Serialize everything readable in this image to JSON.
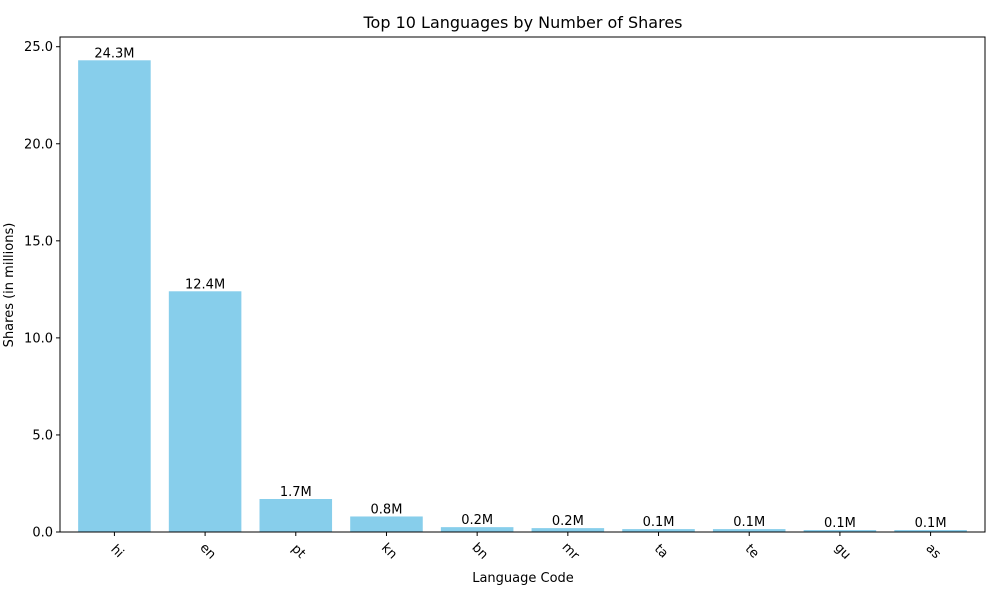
{
  "chart_data": {
    "type": "bar",
    "title": "Top 10 Languages by Number of Shares",
    "xlabel": "Language Code",
    "ylabel": "Shares (in millions)",
    "categories": [
      "hi",
      "en",
      "pt",
      "kn",
      "bn",
      "mr",
      "ta",
      "te",
      "gu",
      "as"
    ],
    "values": [
      24.3,
      12.4,
      1.7,
      0.8,
      0.25,
      0.2,
      0.15,
      0.15,
      0.1,
      0.1
    ],
    "data_labels": [
      "24.3M",
      "12.4M",
      "1.7M",
      "0.8M",
      "0.2M",
      "0.2M",
      "0.1M",
      "0.1M",
      "0.1M",
      "0.1M"
    ],
    "ylim": [
      0,
      25.5
    ],
    "yticks": [
      0,
      5,
      10,
      15,
      20,
      25
    ],
    "ytick_labels": [
      "0.0",
      "5.0",
      "10.0",
      "15.0",
      "20.0",
      "25.0"
    ],
    "bar_color": "#87CEEB",
    "grid": false,
    "legend": "none"
  }
}
